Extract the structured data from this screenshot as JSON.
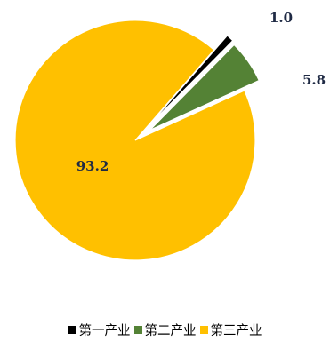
{
  "chart_data": {
    "type": "pie",
    "title": "",
    "slices": [
      {
        "label": "第一产业",
        "value": 1.0,
        "value_label": "1.0",
        "color": "#000000",
        "exploded": true
      },
      {
        "label": "第二产业",
        "value": 5.8,
        "value_label": "5.8",
        "color": "#548235",
        "exploded": true
      },
      {
        "label": "第三产业",
        "value": 93.2,
        "value_label": "93.2",
        "color": "#FFC000",
        "exploded": false
      }
    ],
    "legend": {
      "position": "bottom",
      "items": [
        {
          "label": "第一产业",
          "color": "#000000"
        },
        {
          "label": "第二产业",
          "color": "#548235"
        },
        {
          "label": "第三产业",
          "color": "#FFC000"
        }
      ]
    }
  }
}
